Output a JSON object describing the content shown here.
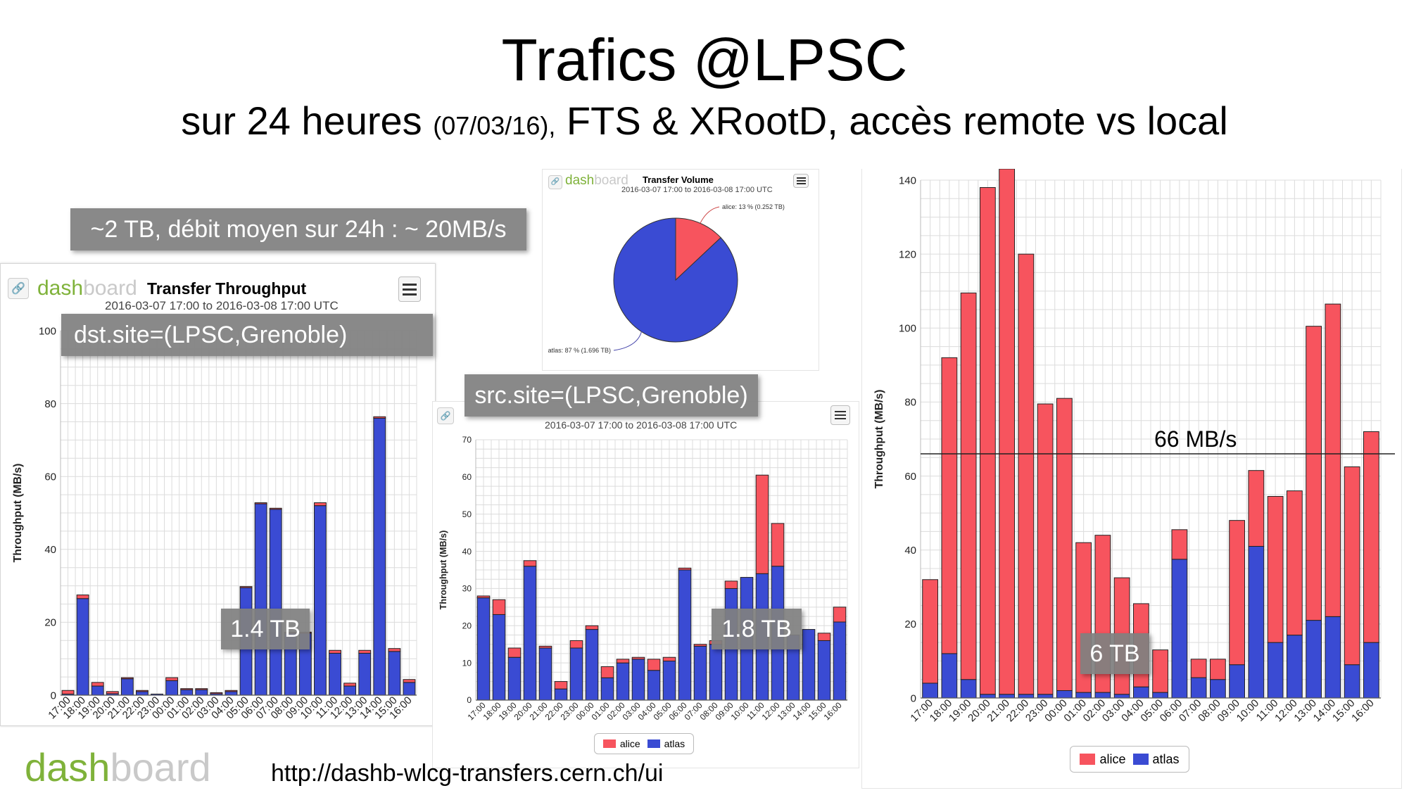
{
  "slide": {
    "title": "Trafics @LPSC",
    "subtitle_main": "sur 24 heures",
    "subtitle_date": "(07/03/16),",
    "subtitle_rest": "FTS & XRootD, accès remote vs local",
    "summary_note": "~2 TB, débit moyen sur 24h :  ~ 20MB/s",
    "footer_url": "http://dashb-wlcg-transfers.cern.ch/ui",
    "footer_logo_a": "dash",
    "footer_logo_b": "board"
  },
  "colors": {
    "alice": "#f7545e",
    "atlas": "#3a4bd3",
    "grid": "#dcdcdc",
    "label_bg": "#808080"
  },
  "icons": {
    "menu": "hamburger-menu-icon",
    "link": "link-icon",
    "logo": "dashboard-logo-icon"
  },
  "panels": {
    "left": {
      "logo_a": "dash",
      "logo_b": "board",
      "title": "Transfer Throughput",
      "range": "2016-03-07 17:00 to 2016-03-08 17:00 UTC",
      "filter_label": "dst.site=(LPSC,Grenoble)",
      "volume_label": "1.4 TB"
    },
    "middle": {
      "range": "2016-03-07 17:00 to 2016-03-08 17:00 UTC",
      "filter_label": "src.site=(LPSC,Grenoble)",
      "volume_label": "1.8 TB",
      "legend": [
        "alice",
        "atlas"
      ]
    },
    "pie": {
      "logo_a": "dash",
      "logo_b": "board",
      "title": "Transfer Volume",
      "range": "2016-03-07 17:00 to 2016-03-08 17:00 UTC"
    },
    "right": {
      "volume_label": "6 TB",
      "reference_label": "66 MB/s",
      "legend": [
        "alice",
        "atlas"
      ]
    }
  },
  "chart_data": [
    {
      "type": "bar",
      "stacked": true,
      "title": "Transfer Throughput",
      "ylabel": "Throughput (MB/s)",
      "ylim": [
        0,
        100
      ],
      "yticks": [
        0,
        20,
        40,
        60,
        80,
        100
      ],
      "grid": true,
      "categories": [
        "17:00",
        "18:00",
        "19:00",
        "20:00",
        "21:00",
        "22:00",
        "23:00",
        "00:00",
        "01:00",
        "02:00",
        "03:00",
        "04:00",
        "05:00",
        "06:00",
        "07:00",
        "08:00",
        "09:00",
        "10:00",
        "11:00",
        "12:00",
        "13:00",
        "14:00",
        "15:00",
        "16:00"
      ],
      "series": [
        {
          "name": "atlas",
          "values": [
            0.3,
            26.5,
            2.5,
            0.4,
            4.5,
            1.0,
            0.3,
            4.0,
            1.5,
            1.5,
            0.4,
            1.0,
            29.5,
            52.5,
            51.0,
            17.0,
            17.0,
            52.0,
            11.5,
            2.5,
            11.5,
            76.0,
            12.0,
            3.5
          ]
        },
        {
          "name": "alice",
          "values": [
            1.0,
            1.0,
            1.0,
            0.6,
            0.3,
            0.3,
            0.0,
            0.8,
            0.3,
            0.3,
            0.3,
            0.3,
            0.3,
            0.3,
            0.3,
            0.3,
            0.3,
            0.8,
            0.8,
            0.8,
            0.8,
            0.4,
            0.8,
            0.8
          ]
        }
      ]
    },
    {
      "type": "bar",
      "stacked": true,
      "ylabel": "Throughput (MB/s)",
      "ylim": [
        0,
        70
      ],
      "yticks": [
        0,
        10,
        20,
        30,
        40,
        50,
        60,
        70
      ],
      "grid": true,
      "legend_position": "bottom",
      "categories": [
        "17:00",
        "18:00",
        "19:00",
        "20:00",
        "21:00",
        "22:00",
        "23:00",
        "00:00",
        "01:00",
        "02:00",
        "03:00",
        "04:00",
        "05:00",
        "06:00",
        "07:00",
        "08:00",
        "09:00",
        "10:00",
        "11:00",
        "12:00",
        "13:00",
        "14:00",
        "15:00",
        "16:00"
      ],
      "series": [
        {
          "name": "atlas",
          "values": [
            27.5,
            23.0,
            11.5,
            36.0,
            14.0,
            3.0,
            14.0,
            19.0,
            6.0,
            10.0,
            11.0,
            8.0,
            10.5,
            35.0,
            14.5,
            15.0,
            30.0,
            33.0,
            34.0,
            36.0,
            17.5,
            19.0,
            16.0,
            21.0
          ]
        },
        {
          "name": "alice",
          "values": [
            0.5,
            4.0,
            2.5,
            1.5,
            0.5,
            2.0,
            2.0,
            1.0,
            3.0,
            1.0,
            0.5,
            3.0,
            1.0,
            0.5,
            0.5,
            1.0,
            2.0,
            0.0,
            26.5,
            11.5,
            0.0,
            0.0,
            2.0,
            4.0
          ]
        }
      ]
    },
    {
      "type": "pie",
      "title": "Transfer Volume",
      "slices": [
        {
          "name": "alice",
          "percent": 13,
          "value_tb": 0.252,
          "label": "alice: 13 % (0.252 TB)"
        },
        {
          "name": "atlas",
          "percent": 87,
          "value_tb": 1.696,
          "label": "atlas: 87 % (1.696 TB)"
        }
      ]
    },
    {
      "type": "bar",
      "stacked": true,
      "ylabel": "Throughput (MB/s)",
      "ylim": [
        0,
        140
      ],
      "yticks": [
        0,
        20,
        40,
        60,
        80,
        100,
        120,
        140
      ],
      "grid": true,
      "legend_position": "bottom",
      "reference_line": 66,
      "categories": [
        "17:00",
        "18:00",
        "19:00",
        "20:00",
        "21:00",
        "22:00",
        "23:00",
        "00:00",
        "01:00",
        "02:00",
        "03:00",
        "04:00",
        "05:00",
        "06:00",
        "07:00",
        "08:00",
        "09:00",
        "10:00",
        "11:00",
        "12:00",
        "13:00",
        "14:00",
        "15:00",
        "16:00"
      ],
      "series": [
        {
          "name": "atlas",
          "values": [
            4.0,
            12.0,
            5.0,
            1.0,
            1.0,
            1.0,
            1.0,
            2.0,
            1.5,
            1.5,
            1.0,
            3.0,
            1.5,
            37.5,
            5.5,
            5.0,
            9.0,
            41.0,
            15.0,
            17.0,
            21.0,
            22.0,
            9.0,
            15.0
          ]
        },
        {
          "name": "alice",
          "values": [
            28.0,
            80.0,
            104.5,
            137.0,
            143.0,
            119.0,
            78.5,
            79.0,
            40.5,
            42.5,
            31.5,
            22.5,
            11.5,
            8.0,
            5.0,
            5.5,
            39.0,
            20.5,
            39.5,
            39.0,
            79.5,
            84.5,
            53.5,
            57.0
          ]
        }
      ]
    }
  ]
}
